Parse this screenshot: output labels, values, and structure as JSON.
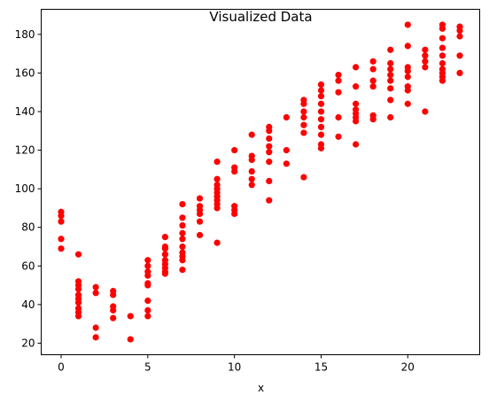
{
  "chart_data": {
    "type": "scatter",
    "title": "Visualized Data",
    "xlabel": "x",
    "ylabel": "",
    "xlim": [
      -1.15,
      24.15
    ],
    "ylim": [
      14,
      193
    ],
    "x_ticks": [
      0,
      5,
      10,
      15,
      20
    ],
    "y_ticks": [
      20,
      40,
      60,
      80,
      100,
      120,
      140,
      160,
      180
    ],
    "grid": false,
    "legend": "none",
    "marker_color": "#ff0000",
    "series": [
      {
        "points": [
          [
            0,
            88
          ],
          [
            0,
            86
          ],
          [
            0,
            83
          ],
          [
            0,
            74
          ],
          [
            0,
            69
          ],
          [
            1,
            66
          ],
          [
            1,
            52
          ],
          [
            1,
            50
          ],
          [
            1,
            48
          ],
          [
            1,
            45
          ],
          [
            1,
            43
          ],
          [
            1,
            41
          ],
          [
            1,
            38
          ],
          [
            1,
            36
          ],
          [
            1,
            34
          ],
          [
            2,
            49
          ],
          [
            2,
            46
          ],
          [
            2,
            28
          ],
          [
            2,
            23
          ],
          [
            3,
            47
          ],
          [
            3,
            45
          ],
          [
            3,
            39
          ],
          [
            3,
            37
          ],
          [
            3,
            33
          ],
          [
            4,
            34
          ],
          [
            4,
            22
          ],
          [
            5,
            63
          ],
          [
            5,
            60
          ],
          [
            5,
            57
          ],
          [
            5,
            55
          ],
          [
            5,
            51
          ],
          [
            5,
            50
          ],
          [
            5,
            42
          ],
          [
            5,
            37
          ],
          [
            5,
            34
          ],
          [
            6,
            75
          ],
          [
            6,
            70
          ],
          [
            6,
            69
          ],
          [
            6,
            66
          ],
          [
            6,
            63
          ],
          [
            6,
            61
          ],
          [
            6,
            59
          ],
          [
            6,
            57
          ],
          [
            6,
            56
          ],
          [
            7,
            92
          ],
          [
            7,
            85
          ],
          [
            7,
            81
          ],
          [
            7,
            77
          ],
          [
            7,
            74
          ],
          [
            7,
            70
          ],
          [
            7,
            67
          ],
          [
            7,
            65
          ],
          [
            7,
            63
          ],
          [
            7,
            58
          ],
          [
            8,
            95
          ],
          [
            8,
            91
          ],
          [
            8,
            89
          ],
          [
            8,
            87
          ],
          [
            8,
            83
          ],
          [
            8,
            76
          ],
          [
            9,
            114
          ],
          [
            9,
            105
          ],
          [
            9,
            102
          ],
          [
            9,
            100
          ],
          [
            9,
            98
          ],
          [
            9,
            96
          ],
          [
            9,
            94
          ],
          [
            9,
            92
          ],
          [
            9,
            90
          ],
          [
            9,
            72
          ],
          [
            10,
            120
          ],
          [
            10,
            111
          ],
          [
            10,
            109
          ],
          [
            10,
            91
          ],
          [
            10,
            89
          ],
          [
            10,
            87
          ],
          [
            11,
            128
          ],
          [
            11,
            117
          ],
          [
            11,
            115
          ],
          [
            11,
            109
          ],
          [
            11,
            105
          ],
          [
            11,
            102
          ],
          [
            12,
            132
          ],
          [
            12,
            130
          ],
          [
            12,
            126
          ],
          [
            12,
            122
          ],
          [
            12,
            119
          ],
          [
            12,
            114
          ],
          [
            12,
            104
          ],
          [
            12,
            94
          ],
          [
            13,
            137
          ],
          [
            13,
            120
          ],
          [
            13,
            113
          ],
          [
            14,
            146
          ],
          [
            14,
            144
          ],
          [
            14,
            140
          ],
          [
            14,
            137
          ],
          [
            14,
            133
          ],
          [
            14,
            129
          ],
          [
            14,
            106
          ],
          [
            15,
            154
          ],
          [
            15,
            151
          ],
          [
            15,
            148
          ],
          [
            15,
            144
          ],
          [
            15,
            140
          ],
          [
            15,
            136
          ],
          [
            15,
            132
          ],
          [
            15,
            128
          ],
          [
            15,
            123
          ],
          [
            15,
            121
          ],
          [
            16,
            159
          ],
          [
            16,
            156
          ],
          [
            16,
            150
          ],
          [
            16,
            137
          ],
          [
            16,
            127
          ],
          [
            17,
            163
          ],
          [
            17,
            153
          ],
          [
            17,
            144
          ],
          [
            17,
            141
          ],
          [
            17,
            139
          ],
          [
            17,
            137
          ],
          [
            17,
            135
          ],
          [
            17,
            123
          ],
          [
            18,
            166
          ],
          [
            18,
            162
          ],
          [
            18,
            156
          ],
          [
            18,
            153
          ],
          [
            18,
            138
          ],
          [
            18,
            136
          ],
          [
            19,
            172
          ],
          [
            19,
            165
          ],
          [
            19,
            162
          ],
          [
            19,
            159
          ],
          [
            19,
            156
          ],
          [
            19,
            152
          ],
          [
            19,
            146
          ],
          [
            19,
            137
          ],
          [
            20,
            185
          ],
          [
            20,
            174
          ],
          [
            20,
            163
          ],
          [
            20,
            161
          ],
          [
            20,
            158
          ],
          [
            20,
            153
          ],
          [
            20,
            151
          ],
          [
            20,
            144
          ],
          [
            21,
            172
          ],
          [
            21,
            169
          ],
          [
            21,
            166
          ],
          [
            21,
            163
          ],
          [
            21,
            140
          ],
          [
            22,
            185
          ],
          [
            22,
            183
          ],
          [
            22,
            178
          ],
          [
            22,
            173
          ],
          [
            22,
            169
          ],
          [
            22,
            165
          ],
          [
            22,
            162
          ],
          [
            22,
            160
          ],
          [
            22,
            158
          ],
          [
            22,
            156
          ],
          [
            23,
            184
          ],
          [
            23,
            182
          ],
          [
            23,
            179
          ],
          [
            23,
            169
          ],
          [
            23,
            160
          ]
        ]
      }
    ]
  }
}
